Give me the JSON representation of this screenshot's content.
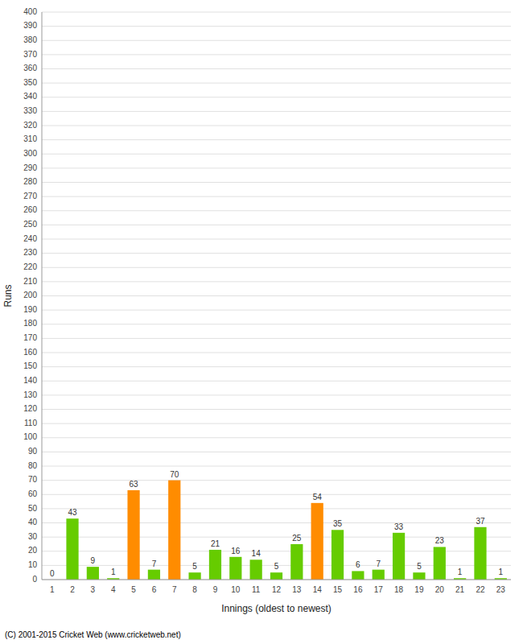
{
  "chart_data": {
    "type": "bar",
    "xlabel": "Innings (oldest to newest)",
    "ylabel": "Runs",
    "categories": [
      1,
      2,
      3,
      4,
      5,
      6,
      7,
      8,
      9,
      10,
      11,
      12,
      13,
      14,
      15,
      16,
      17,
      18,
      19,
      20,
      21,
      22,
      23
    ],
    "values": [
      0,
      43,
      9,
      1,
      63,
      7,
      70,
      5,
      21,
      16,
      14,
      5,
      25,
      54,
      35,
      6,
      7,
      33,
      5,
      23,
      1,
      37,
      1
    ],
    "colors": [
      "#66cc00",
      "#66cc00",
      "#66cc00",
      "#66cc00",
      "#ff8c00",
      "#66cc00",
      "#ff8c00",
      "#66cc00",
      "#66cc00",
      "#66cc00",
      "#66cc00",
      "#66cc00",
      "#66cc00",
      "#ff8c00",
      "#66cc00",
      "#66cc00",
      "#66cc00",
      "#66cc00",
      "#66cc00",
      "#66cc00",
      "#66cc00",
      "#66cc00",
      "#66cc00"
    ],
    "ylim": [
      0,
      400
    ],
    "yticks": [
      0,
      10,
      20,
      30,
      40,
      50,
      60,
      70,
      80,
      90,
      100,
      110,
      120,
      130,
      140,
      150,
      160,
      170,
      180,
      190,
      200,
      210,
      220,
      230,
      240,
      250,
      260,
      270,
      280,
      290,
      300,
      310,
      320,
      330,
      340,
      350,
      360,
      370,
      380,
      390,
      400
    ],
    "grid": true,
    "data_labels": true,
    "annotations": [
      "(C) 2001-2015 Cricket Web (www.cricketweb.net)"
    ]
  }
}
